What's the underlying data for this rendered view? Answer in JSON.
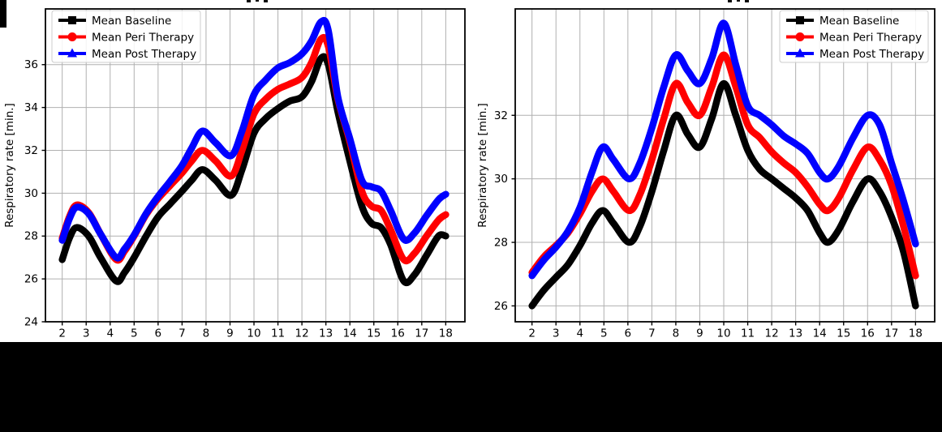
{
  "figure": {
    "background_color": "#ffffff",
    "bottom_bar_color": "#000000",
    "grid_color": "#b0b0b0",
    "spine_color": "#000000",
    "legend_border_color": "#cccccc"
  },
  "chart_data": [
    {
      "type": "line",
      "name": "left-panel",
      "title": "",
      "xlabel": "",
      "ylabel": "Respiratory rate [min.]",
      "xlim": [
        1.3,
        18.8
      ],
      "ylim": [
        24,
        38.6
      ],
      "xticks": [
        2,
        3,
        4,
        5,
        6,
        7,
        8,
        9,
        10,
        11,
        12,
        13,
        14,
        15,
        16,
        17,
        18
      ],
      "yticks": [
        24,
        26,
        28,
        30,
        32,
        34,
        36
      ],
      "grid": true,
      "legend_position": "top-left",
      "series": [
        {
          "name": "Mean Baseline",
          "color": "#000000",
          "marker": "square",
          "x": [
            2,
            2.3,
            2.6,
            3.1,
            3.6,
            4.25,
            4.6,
            5,
            5.5,
            6,
            6.5,
            7,
            7.4,
            7.85,
            8.4,
            9.05,
            9.5,
            10,
            10.5,
            11,
            11.5,
            12,
            12.4,
            12.8,
            13.1,
            13.5,
            14,
            14.5,
            14.9,
            15.3,
            15.7,
            16.25,
            16.7,
            17.2,
            17.7,
            18
          ],
          "y": [
            26.9,
            27.9,
            28.4,
            28.0,
            27.0,
            25.9,
            26.3,
            27.0,
            28.0,
            28.9,
            29.5,
            30.1,
            30.6,
            31.1,
            30.6,
            29.9,
            31.1,
            32.8,
            33.5,
            33.95,
            34.3,
            34.5,
            35.2,
            36.3,
            36.0,
            33.8,
            31.5,
            29.4,
            28.6,
            28.4,
            27.6,
            25.9,
            26.2,
            27.1,
            28.0,
            28.0
          ]
        },
        {
          "name": "Mean Peri Therapy",
          "color": "#ff0000",
          "marker": "circle",
          "x": [
            2,
            2.3,
            2.6,
            3.1,
            3.6,
            4.25,
            4.6,
            5,
            5.5,
            6,
            6.5,
            7,
            7.4,
            7.85,
            8.4,
            9.05,
            9.5,
            10,
            10.5,
            11,
            11.5,
            12,
            12.4,
            12.8,
            13.1,
            13.5,
            14,
            14.5,
            14.9,
            15.3,
            15.7,
            16.25,
            16.7,
            17.2,
            17.7,
            18
          ],
          "y": [
            27.9,
            28.9,
            29.45,
            29.1,
            28.1,
            26.9,
            27.3,
            28.0,
            29.0,
            29.75,
            30.35,
            30.95,
            31.5,
            32.0,
            31.5,
            30.8,
            32.0,
            33.7,
            34.4,
            34.85,
            35.1,
            35.4,
            36.1,
            37.2,
            36.85,
            34.4,
            32.4,
            30.1,
            29.4,
            29.2,
            28.3,
            26.9,
            27.2,
            28.0,
            28.75,
            29.0
          ]
        },
        {
          "name": "Mean Post Therapy",
          "color": "#0000ff",
          "marker": "triangle",
          "x": [
            2,
            2.3,
            2.6,
            3.1,
            3.6,
            4.25,
            4.6,
            5,
            5.5,
            6,
            6.5,
            7,
            7.4,
            7.85,
            8.4,
            9.05,
            9.5,
            10,
            10.5,
            11,
            11.5,
            12,
            12.4,
            12.8,
            13.1,
            13.5,
            14,
            14.5,
            14.9,
            15.3,
            15.7,
            16.25,
            16.7,
            17.2,
            17.7,
            18
          ],
          "y": [
            27.8,
            28.8,
            29.35,
            29.05,
            28.1,
            27.0,
            27.4,
            28.05,
            29.05,
            29.85,
            30.55,
            31.3,
            32.1,
            32.9,
            32.35,
            31.75,
            32.9,
            34.6,
            35.3,
            35.85,
            36.1,
            36.5,
            37.1,
            38.0,
            37.6,
            34.5,
            32.55,
            30.6,
            30.3,
            30.1,
            29.2,
            27.85,
            28.15,
            28.95,
            29.7,
            29.95
          ]
        }
      ]
    },
    {
      "type": "line",
      "name": "right-panel",
      "title": "",
      "xlabel": "",
      "ylabel": "Respiratory rate [min.]",
      "xlim": [
        1.3,
        18.8
      ],
      "ylim": [
        25.5,
        35.35
      ],
      "xticks": [
        2,
        3,
        4,
        5,
        6,
        7,
        8,
        9,
        10,
        11,
        12,
        13,
        14,
        15,
        16,
        17,
        18
      ],
      "yticks": [
        26,
        28,
        30,
        32
      ],
      "grid": true,
      "legend_position": "top-right",
      "series": [
        {
          "name": "Mean Baseline",
          "color": "#000000",
          "marker": "square",
          "x": [
            2,
            2.5,
            3,
            3.5,
            4,
            4.5,
            4.95,
            5.4,
            6.05,
            6.5,
            7,
            7.5,
            8,
            8.5,
            9,
            9.5,
            10,
            10.5,
            11,
            11.5,
            12,
            12.5,
            13,
            13.5,
            14,
            14.35,
            14.8,
            15.4,
            16,
            16.5,
            17,
            17.5,
            18
          ],
          "y": [
            26.0,
            26.5,
            26.9,
            27.3,
            27.9,
            28.6,
            29.0,
            28.6,
            28.0,
            28.5,
            29.6,
            30.9,
            32.0,
            31.4,
            31.0,
            31.9,
            33.0,
            32.0,
            30.9,
            30.3,
            30.0,
            29.7,
            29.4,
            29.0,
            28.3,
            28.0,
            28.4,
            29.3,
            30.0,
            29.6,
            28.8,
            27.7,
            26.0
          ]
        },
        {
          "name": "Mean Peri Therapy",
          "color": "#ff0000",
          "marker": "circle",
          "x": [
            2,
            2.5,
            3,
            3.5,
            4,
            4.5,
            4.95,
            5.4,
            6.05,
            6.5,
            7,
            7.5,
            8,
            8.5,
            9,
            9.5,
            10,
            10.5,
            11,
            11.5,
            12,
            12.5,
            13,
            13.5,
            14,
            14.35,
            14.8,
            15.4,
            16,
            16.5,
            17,
            17.5,
            18
          ],
          "y": [
            27.05,
            27.55,
            27.9,
            28.3,
            28.9,
            29.6,
            30.0,
            29.6,
            29.0,
            29.5,
            30.6,
            31.9,
            33.0,
            32.4,
            32.0,
            32.9,
            33.9,
            32.9,
            31.7,
            31.3,
            30.85,
            30.5,
            30.2,
            29.75,
            29.2,
            29.0,
            29.4,
            30.3,
            31.0,
            30.6,
            29.8,
            28.5,
            26.95
          ]
        },
        {
          "name": "Mean Post Therapy",
          "color": "#0000ff",
          "marker": "triangle",
          "x": [
            2,
            2.5,
            3,
            3.5,
            4,
            4.5,
            4.95,
            5.4,
            6.05,
            6.5,
            7,
            7.5,
            8,
            8.5,
            9,
            9.5,
            10,
            10.5,
            11,
            11.5,
            12,
            12.5,
            13,
            13.5,
            14,
            14.35,
            14.8,
            15.4,
            16,
            16.5,
            17,
            17.5,
            18
          ],
          "y": [
            26.95,
            27.45,
            27.85,
            28.35,
            29.1,
            30.2,
            31.0,
            30.6,
            30.0,
            30.5,
            31.6,
            32.9,
            33.9,
            33.4,
            33.0,
            33.8,
            34.9,
            33.6,
            32.3,
            32.0,
            31.7,
            31.35,
            31.1,
            30.8,
            30.2,
            30.0,
            30.4,
            31.3,
            32.0,
            31.7,
            30.5,
            29.3,
            27.95
          ]
        }
      ]
    }
  ]
}
